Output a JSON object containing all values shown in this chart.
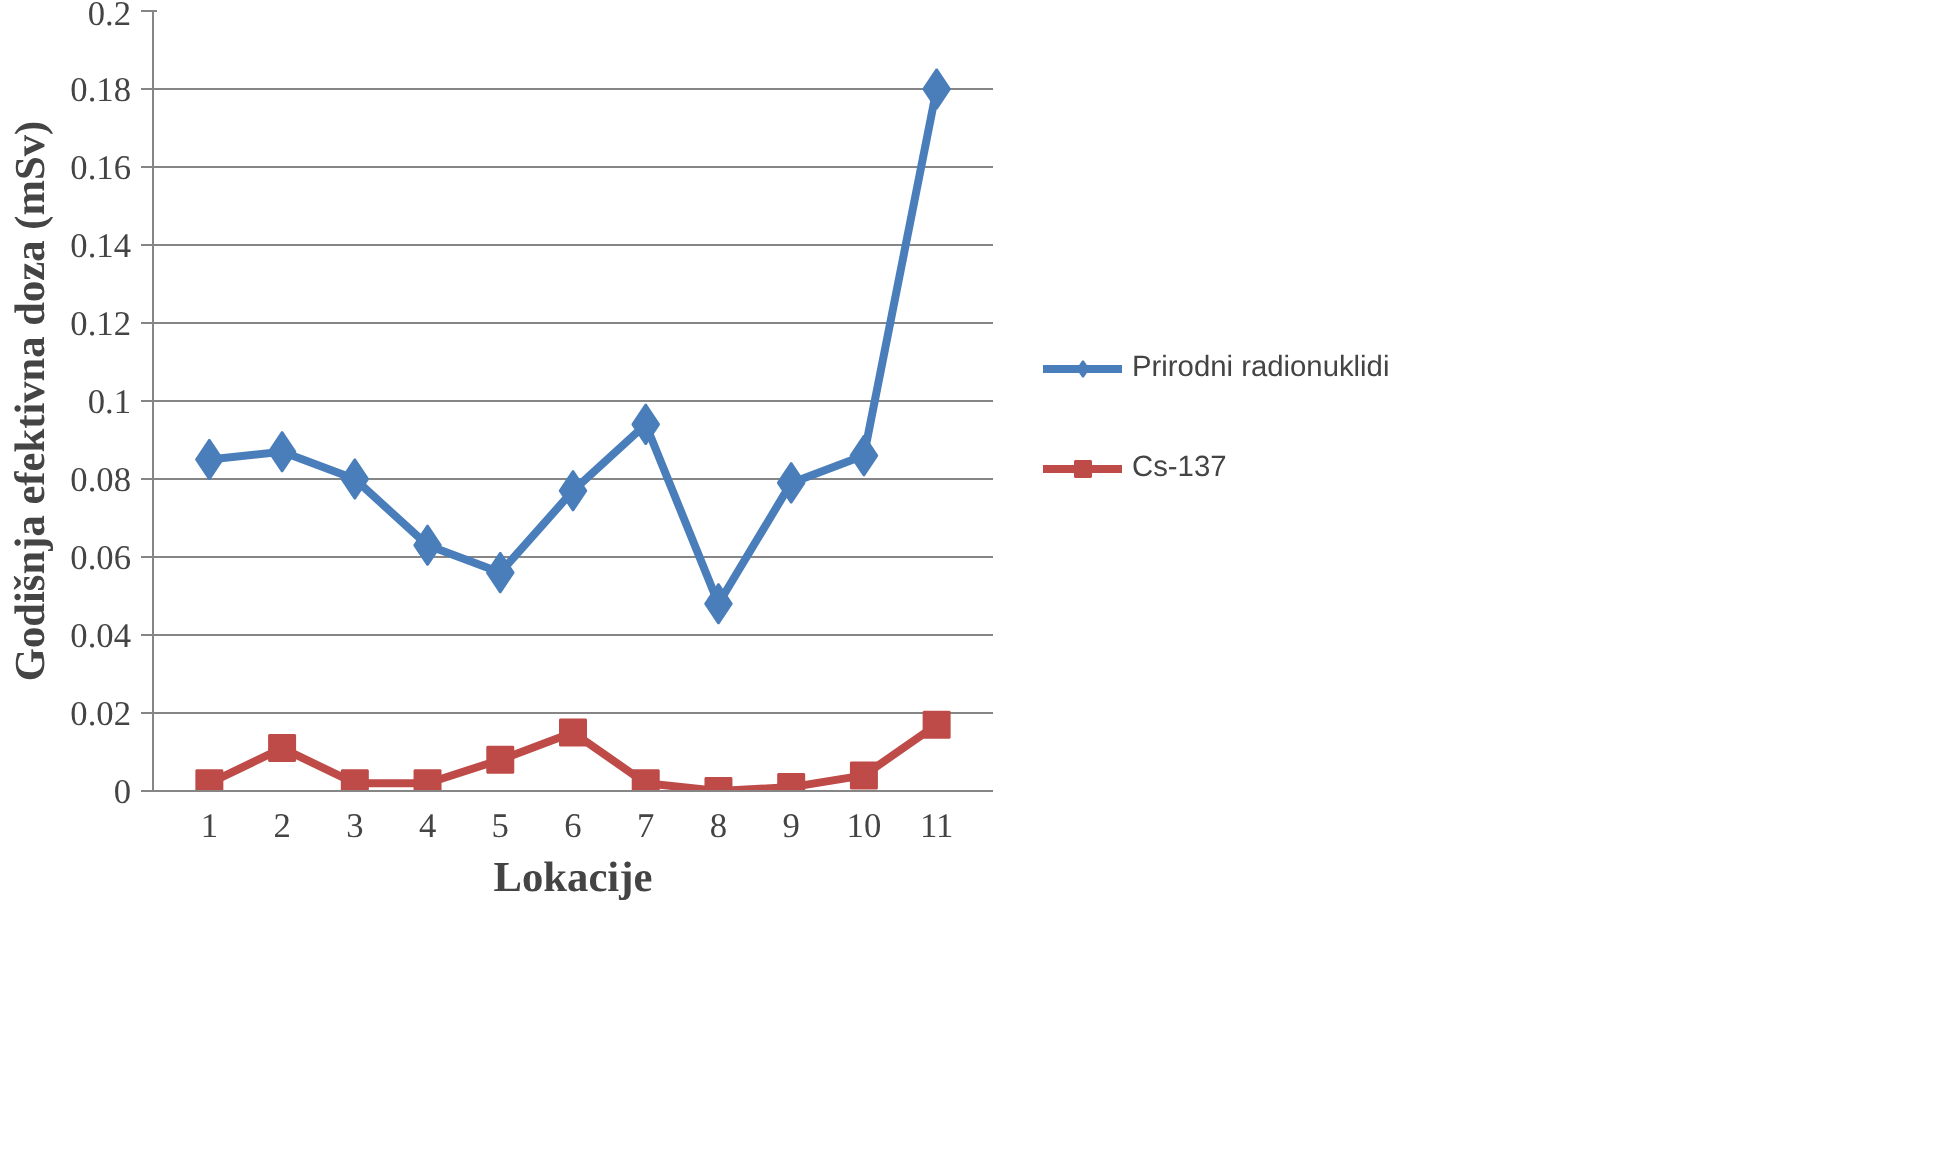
{
  "chart_data": {
    "type": "line",
    "xlabel": "Lokacije",
    "ylabel": "Godišnja efektivna doza (mSv)",
    "categories": [
      "1",
      "2",
      "3",
      "4",
      "5",
      "6",
      "7",
      "8",
      "9",
      "10",
      "11"
    ],
    "series": [
      {
        "name": "Prirodni radionuklidi",
        "color": "#4a7ebb",
        "marker": "diamond",
        "values": [
          0.085,
          0.087,
          0.08,
          0.063,
          0.056,
          0.077,
          0.094,
          0.048,
          0.079,
          0.086,
          0.18
        ]
      },
      {
        "name": "Cs-137",
        "color": "#be4b48",
        "marker": "square",
        "values": [
          0.002,
          0.011,
          0.002,
          0.002,
          0.008,
          0.015,
          0.002,
          0.0,
          0.001,
          0.004,
          0.017
        ]
      }
    ],
    "ylim": [
      0,
      0.2
    ],
    "yticks": [
      0,
      0.02,
      0.04,
      0.06,
      0.08,
      0.1,
      0.12,
      0.14,
      0.16,
      0.18,
      0.2
    ],
    "grid": "y",
    "legend": "right",
    "line_style": "solid"
  }
}
